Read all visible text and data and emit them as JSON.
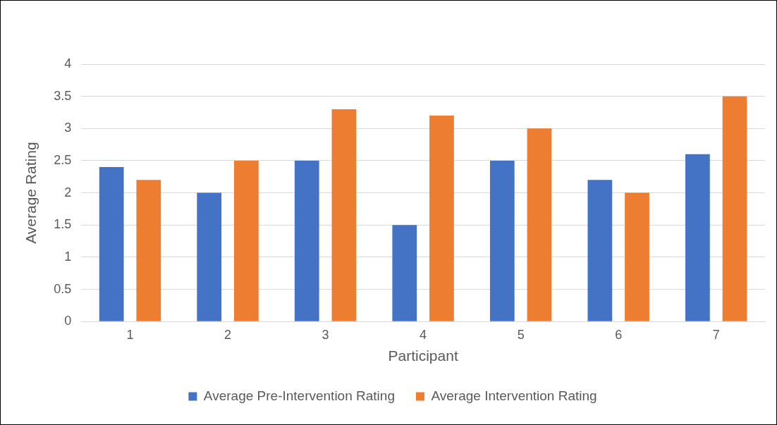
{
  "chart_data": {
    "type": "bar",
    "xlabel": "Participant",
    "ylabel": "Average Rating",
    "categories": [
      "1",
      "2",
      "3",
      "4",
      "5",
      "6",
      "7"
    ],
    "series": [
      {
        "name": "Average Pre-Intervention Rating",
        "color": "#4472c4",
        "values": [
          2.4,
          2.0,
          2.5,
          1.5,
          2.5,
          2.2,
          2.6
        ]
      },
      {
        "name": "Average Intervention Rating",
        "color": "#ed7d31",
        "values": [
          2.2,
          2.5,
          3.3,
          3.2,
          3.0,
          2.0,
          3.5
        ]
      }
    ],
    "ylim": [
      0,
      4
    ],
    "yticks": [
      0,
      0.5,
      1,
      1.5,
      2,
      2.5,
      3,
      3.5,
      4
    ],
    "grid": "y",
    "legend": "bottom"
  }
}
